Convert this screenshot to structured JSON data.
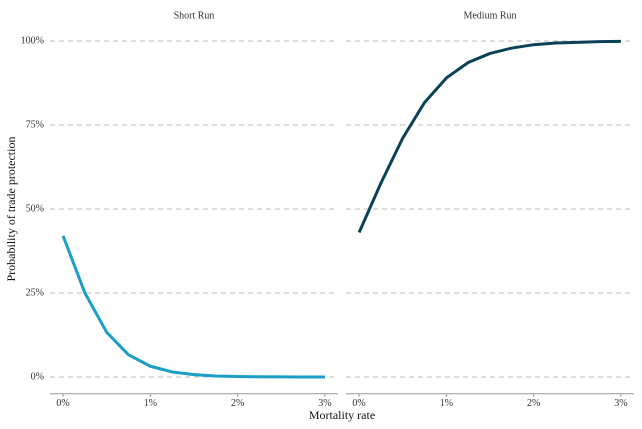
{
  "axis_titles": {
    "x": "Mortality rate",
    "y": "Probability of trade protection"
  },
  "chart_data": [
    {
      "type": "line",
      "title": "Short Run",
      "x": [
        0,
        0.25,
        0.5,
        0.75,
        1,
        1.25,
        1.5,
        1.75,
        2,
        2.25,
        2.5,
        2.75,
        3
      ],
      "series": [
        {
          "color": "#1b9ec6",
          "values": [
            42,
            25,
            13.3,
            6.6,
            3.2,
            1.5,
            0.7,
            0.3,
            0.15,
            0.07,
            0.03,
            0.01,
            0.01
          ]
        }
      ],
      "xlim": [
        -0.15,
        3.15
      ],
      "ylim": [
        -5,
        105
      ],
      "xticks": [
        {
          "value": 0,
          "label": "0%"
        },
        {
          "value": 1,
          "label": "1%"
        },
        {
          "value": 2,
          "label": "2%"
        },
        {
          "value": 3,
          "label": "3%"
        }
      ],
      "yticks": [
        {
          "value": 0,
          "label": "0%"
        },
        {
          "value": 25,
          "label": "25%"
        },
        {
          "value": 50,
          "label": "50%"
        },
        {
          "value": 75,
          "label": "75%"
        },
        {
          "value": 100,
          "label": "100%"
        }
      ],
      "grid": true
    },
    {
      "type": "line",
      "title": "Medium Run",
      "x": [
        0,
        0.25,
        0.5,
        0.75,
        1,
        1.25,
        1.5,
        1.75,
        2,
        2.25,
        2.5,
        2.75,
        3
      ],
      "series": [
        {
          "color": "#0c4258",
          "values": [
            43,
            57.7,
            71.1,
            81.7,
            89,
            93.6,
            96.3,
            97.9,
            98.9,
            99.4,
            99.6,
            99.8,
            99.9
          ]
        }
      ],
      "xlim": [
        -0.15,
        3.15
      ],
      "ylim": [
        -5,
        105
      ],
      "xticks": [
        {
          "value": 0,
          "label": "0%"
        },
        {
          "value": 1,
          "label": "1%"
        },
        {
          "value": 2,
          "label": "2%"
        },
        {
          "value": 3,
          "label": "3%"
        }
      ],
      "grid": true
    }
  ]
}
